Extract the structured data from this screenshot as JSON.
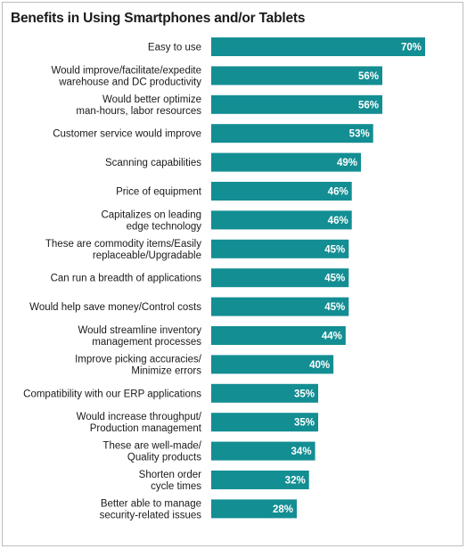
{
  "chart_data": {
    "type": "bar",
    "orientation": "horizontal",
    "title": "Benefits in Using Smartphones and/or Tablets",
    "bar_color": "#138e93",
    "value_suffix": "%",
    "xlim": [
      0,
      70
    ],
    "categories": [
      [
        "Easy to use"
      ],
      [
        "Would improve/facilitate/expedite",
        "warehouse and DC productivity"
      ],
      [
        "Would better optimize",
        "man-hours, labor resources"
      ],
      [
        "Customer service would improve"
      ],
      [
        "Scanning capabilities"
      ],
      [
        "Price of equipment"
      ],
      [
        "Capitalizes on leading",
        "edge technology"
      ],
      [
        "These are commodity items/Easily",
        "replaceable/Upgradable"
      ],
      [
        "Can run a breadth of applications"
      ],
      [
        "Would help save money/Control costs"
      ],
      [
        "Would streamline inventory",
        "management processes"
      ],
      [
        "Improve picking accuracies/",
        "Minimize errors"
      ],
      [
        "Compatibility with our ERP applications"
      ],
      [
        "Would increase throughput/",
        "Production management"
      ],
      [
        "These are well-made/",
        "Quality products"
      ],
      [
        "Shorten order",
        "cycle times"
      ],
      [
        "Better able to manage",
        "security-related issues"
      ]
    ],
    "values": [
      70,
      56,
      56,
      53,
      49,
      46,
      46,
      45,
      45,
      45,
      44,
      40,
      35,
      35,
      34,
      32,
      28
    ]
  }
}
